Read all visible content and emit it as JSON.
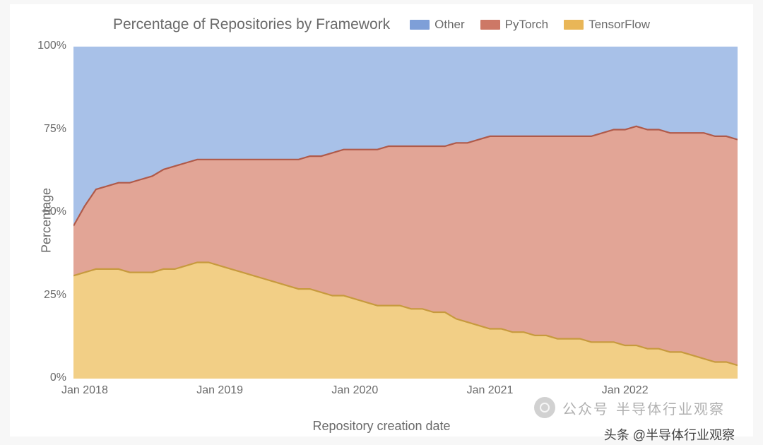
{
  "chart": {
    "type": "area_stacked",
    "title": "Percentage of Repositories by Framework",
    "title_color": "#6a6a6a",
    "title_fontsize": 21,
    "x_axis_label": "Repository creation date",
    "y_axis_label": "Percentage",
    "axis_label_color": "#6a6a6a",
    "axis_label_fontsize": 18,
    "tick_fontsize": 16,
    "tick_color": "#6a6a6a",
    "background_color": "#ffffff",
    "page_background": "#f7f7f7",
    "grid_color": "#d9d9d9",
    "grid_width": 1,
    "ylim": [
      0,
      100
    ],
    "y_ticks": [
      0,
      25,
      50,
      75,
      100
    ],
    "y_tick_labels": [
      "0%",
      "25%",
      "50%",
      "75%",
      "100%"
    ],
    "x_ticks": [
      1,
      13,
      25,
      37,
      49
    ],
    "x_tick_labels": [
      "Jan 2018",
      "Jan 2019",
      "Jan 2020",
      "Jan 2021",
      "Jan 2022"
    ],
    "x_index_range": [
      0,
      59
    ],
    "legend": {
      "position": "top-right-of-title",
      "items": [
        {
          "label": "Other",
          "color": "#7e9fd8"
        },
        {
          "label": "PyTorch",
          "color": "#cd7866"
        },
        {
          "label": "TensorFlow",
          "color": "#e9b657"
        }
      ]
    },
    "series": [
      {
        "name": "TensorFlow",
        "fill_color": "#f2cf86",
        "stroke_color": "#c79a3e",
        "fill_opacity": 1,
        "values": [
          31,
          32,
          33,
          33,
          33,
          32,
          32,
          32,
          33,
          33,
          34,
          35,
          35,
          34,
          33,
          32,
          31,
          30,
          29,
          28,
          27,
          27,
          26,
          25,
          25,
          24,
          23,
          22,
          22,
          22,
          21,
          21,
          20,
          20,
          18,
          17,
          16,
          15,
          15,
          14,
          14,
          13,
          13,
          12,
          12,
          12,
          11,
          11,
          11,
          10,
          10,
          9,
          9,
          8,
          8,
          7,
          6,
          5,
          5,
          4
        ]
      },
      {
        "name": "PyTorch",
        "fill_color": "#e2a596",
        "stroke_color": "#b05a49",
        "fill_opacity": 1,
        "values": [
          15,
          20,
          24,
          25,
          26,
          27,
          28,
          29,
          30,
          31,
          31,
          31,
          31,
          32,
          33,
          34,
          35,
          36,
          37,
          38,
          39,
          40,
          41,
          43,
          44,
          45,
          46,
          47,
          48,
          48,
          49,
          49,
          50,
          50,
          53,
          54,
          56,
          58,
          58,
          59,
          59,
          60,
          60,
          61,
          61,
          61,
          62,
          63,
          64,
          65,
          66,
          66,
          66,
          66,
          66,
          67,
          68,
          68,
          68,
          68
        ]
      },
      {
        "name": "Other",
        "fill_color": "#a8c1e8",
        "stroke_color": "#7e9fd8",
        "fill_opacity": 1,
        "values": [
          54,
          48,
          43,
          42,
          41,
          41,
          40,
          39,
          37,
          36,
          35,
          34,
          34,
          34,
          34,
          34,
          34,
          34,
          34,
          34,
          34,
          33,
          33,
          32,
          31,
          31,
          31,
          31,
          30,
          30,
          30,
          30,
          30,
          30,
          29,
          29,
          28,
          27,
          27,
          27,
          27,
          27,
          27,
          27,
          27,
          27,
          27,
          26,
          25,
          25,
          24,
          25,
          25,
          26,
          26,
          26,
          26,
          27,
          27,
          28
        ]
      }
    ]
  },
  "watermark": {
    "label": "公众号",
    "brand": "半导体行业观察"
  },
  "footer": {
    "text": "头条 @半导体行业观察"
  }
}
